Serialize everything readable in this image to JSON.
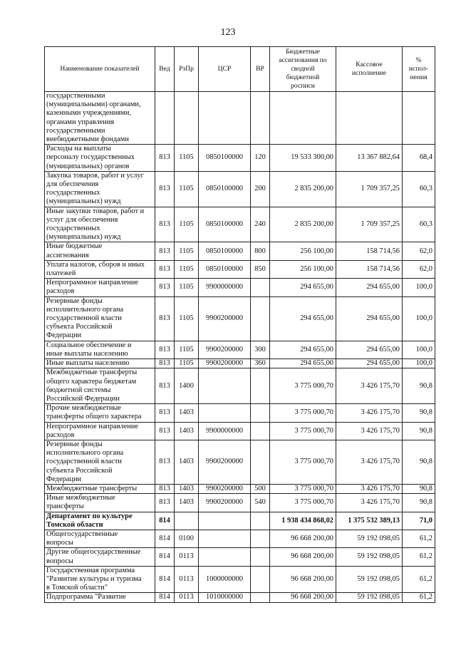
{
  "page_number": "123",
  "columns": [
    "Наименование показателей",
    "Вед",
    "РзПр",
    "ЦСР",
    "ВР",
    "Бюджетные\nассигнования по\nсводной\nбюджетной\nросписи",
    "Кассовое\nисполнение",
    "%\nиспол-\nнения"
  ],
  "rows": [
    {
      "name": "государственными\n(муниципальными) органами,\nказенными учреждениями,\nорганами управления\nгосударственными\nвнебюджетными фондами",
      "ved": "",
      "rzpr": "",
      "csr": "",
      "vr": "",
      "budget": "",
      "cash": "",
      "pct": ""
    },
    {
      "name": "Расходы на выплаты\nперсоналу государственных\n(муниципальных) органов",
      "ved": "813",
      "rzpr": "1105",
      "csr": "0850100000",
      "vr": "120",
      "budget": "19 533 300,00",
      "cash": "13 367 882,64",
      "pct": "68,4"
    },
    {
      "name": "Закупка товаров, работ и услуг\nдля обеспечения\nгосударственных\n(муниципальных) нужд",
      "ved": "813",
      "rzpr": "1105",
      "csr": "0850100000",
      "vr": "200",
      "budget": "2 835 200,00",
      "cash": "1 709 357,25",
      "pct": "60,3"
    },
    {
      "name": "Иные закупки товаров, работ и\nуслуг для обеспечения\nгосударственных\n(муниципальных) нужд",
      "ved": "813",
      "rzpr": "1105",
      "csr": "0850100000",
      "vr": "240",
      "budget": "2 835 200,00",
      "cash": "1 709 357,25",
      "pct": "60,3"
    },
    {
      "name": "Иные бюджетные\nассигнования",
      "ved": "813",
      "rzpr": "1105",
      "csr": "0850100000",
      "vr": "800",
      "budget": "256 100,00",
      "cash": "158 714,56",
      "pct": "62,0"
    },
    {
      "name": "Уплата налогов, сборов и иных\nплатежей",
      "ved": "813",
      "rzpr": "1105",
      "csr": "0850100000",
      "vr": "850",
      "budget": "256 100,00",
      "cash": "158 714,56",
      "pct": "62,0"
    },
    {
      "name": "Непрограммное направление\nрасходов",
      "ved": "813",
      "rzpr": "1105",
      "csr": "9900000000",
      "vr": "",
      "budget": "294 655,00",
      "cash": "294 655,00",
      "pct": "100,0"
    },
    {
      "name": "Резервные фонды\nисполнительного органа\nгосударственной власти\nсубъекта Российской\nФедерации",
      "ved": "813",
      "rzpr": "1105",
      "csr": "9900200000",
      "vr": "",
      "budget": "294 655,00",
      "cash": "294 655,00",
      "pct": "100,0"
    },
    {
      "name": "Социальное обеспечение и\nиные выплаты населению",
      "ved": "813",
      "rzpr": "1105",
      "csr": "9900200000",
      "vr": "300",
      "budget": "294 655,00",
      "cash": "294 655,00",
      "pct": "100,0"
    },
    {
      "name": "Иные выплаты населению",
      "ved": "813",
      "rzpr": "1105",
      "csr": "9900200000",
      "vr": "360",
      "budget": "294 655,00",
      "cash": "294 655,00",
      "pct": "100,0"
    },
    {
      "name": "Межбюджетные трансферты\nобщего характера бюджетам\nбюджетной системы\nРоссийской Федерации",
      "ved": "813",
      "rzpr": "1400",
      "csr": "",
      "vr": "",
      "budget": "3 775 000,70",
      "cash": "3 426 175,70",
      "pct": "90,8"
    },
    {
      "name": "Прочие межбюджетные\nтрансферты общего характера",
      "ved": "813",
      "rzpr": "1403",
      "csr": "",
      "vr": "",
      "budget": "3 775 000,70",
      "cash": "3 426 175,70",
      "pct": "90,8"
    },
    {
      "name": "Непрограммное направление\nрасходов",
      "ved": "813",
      "rzpr": "1403",
      "csr": "9900000000",
      "vr": "",
      "budget": "3 775 000,70",
      "cash": "3 426 175,70",
      "pct": "90,8"
    },
    {
      "name": "Резервные фонды\nисполнительного органа\nгосударственной власти\nсубъекта Российской\nФедерации",
      "ved": "813",
      "rzpr": "1403",
      "csr": "9900200000",
      "vr": "",
      "budget": "3 775 000,70",
      "cash": "3 426 175,70",
      "pct": "90,8"
    },
    {
      "name": "Межбюджетные трансферты",
      "ved": "813",
      "rzpr": "1403",
      "csr": "9900200000",
      "vr": "500",
      "budget": "3 775 000,70",
      "cash": "3 426 175,70",
      "pct": "90,8"
    },
    {
      "name": "Иные межбюджетные\nтрансферты",
      "ved": "813",
      "rzpr": "1403",
      "csr": "9900200000",
      "vr": "540",
      "budget": "3 775 000,70",
      "cash": "3 426 175,70",
      "pct": "90,8"
    },
    {
      "name": "Департамент по культуре\nТомской области",
      "ved": "814",
      "rzpr": "",
      "csr": "",
      "vr": "",
      "budget": "1 938 434 868,02",
      "cash": "1 375 532 389,13",
      "pct": "71,0",
      "bold": true
    },
    {
      "name": "Общегосударственные\nвопросы",
      "ved": "814",
      "rzpr": "0100",
      "csr": "",
      "vr": "",
      "budget": "96 668 200,00",
      "cash": "59 192 098,05",
      "pct": "61,2"
    },
    {
      "name": "Другие общегосударственные\nвопросы",
      "ved": "814",
      "rzpr": "0113",
      "csr": "",
      "vr": "",
      "budget": "96 668 200,00",
      "cash": "59 192 098,05",
      "pct": "61,2"
    },
    {
      "name": "Государственная программа\n\"Развитие культуры и туризма\nв Томской области\"",
      "ved": "814",
      "rzpr": "0113",
      "csr": "1000000000",
      "vr": "",
      "budget": "96 668 200,00",
      "cash": "59 192 098,05",
      "pct": "61,2"
    },
    {
      "name": "Подпрограмма \"Развитие",
      "ved": "814",
      "rzpr": "0113",
      "csr": "1010000000",
      "vr": "",
      "budget": "96 668 200,00",
      "cash": "59 192 098,05",
      "pct": "61,2"
    }
  ]
}
